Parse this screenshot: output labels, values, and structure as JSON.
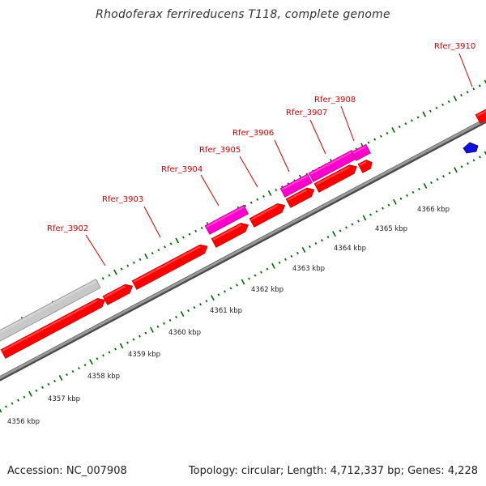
{
  "title": "Rhodoferax ferrireducens T118, complete genome",
  "footer": {
    "accession": "Accession: NC_007908",
    "summary": "Topology: circular; Length: 4,712,337 bp; Genes: 4,228"
  },
  "colors": {
    "backbone": "#808080",
    "forward_gene": "#ff0000",
    "highlight_gene": "#ff00cc",
    "grey_feature": "#c8c8c8",
    "blue_feature": "#1111dd",
    "tick_green": "#006600",
    "label_red": "#cc0000"
  },
  "gene_labels": [
    "Rfer_3902",
    "Rfer_3903",
    "Rfer_3904",
    "Rfer_3905",
    "Rfer_3906",
    "Rfer_3907",
    "Rfer_3908",
    "Rfer_3910"
  ],
  "kbp_labels": [
    "4356 kbp",
    "4357 kbp",
    "4358 kbp",
    "4359 kbp",
    "4360 kbp",
    "4361 kbp",
    "4362 kbp",
    "4363 kbp",
    "4364 kbp",
    "4365 kbp",
    "4366 kbp"
  ]
}
